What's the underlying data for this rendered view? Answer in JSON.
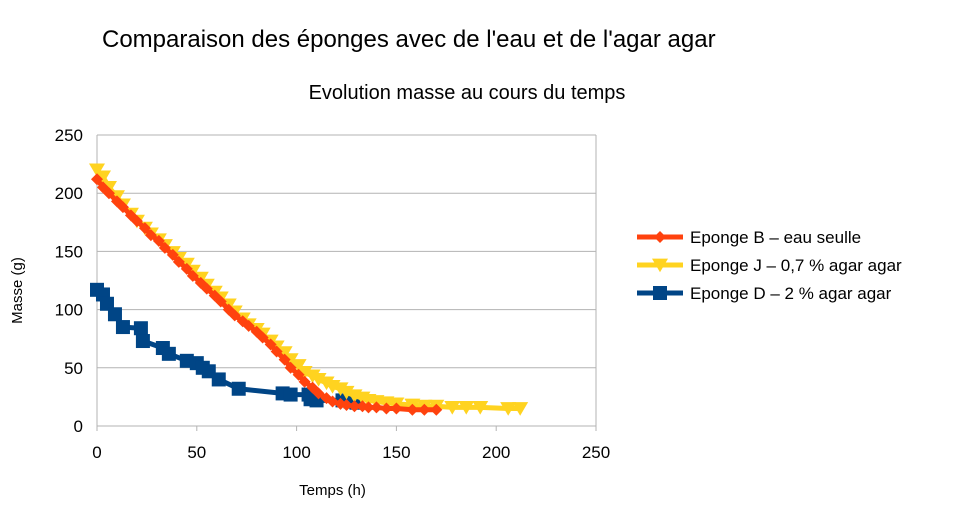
{
  "chart_data": {
    "type": "scatter",
    "title": "Comparaison des éponges avec de l'eau et de l'agar agar",
    "subtitle": "Evolution masse au cours du temps",
    "xlabel": "Temps (h)",
    "ylabel": "Masse (g)",
    "xlim": [
      0,
      250
    ],
    "ylim": [
      0,
      250
    ],
    "xticks": [
      0,
      50,
      100,
      150,
      200,
      250
    ],
    "yticks": [
      0,
      50,
      100,
      150,
      200,
      250
    ],
    "grid": "horizontal",
    "legend_position": "right",
    "series": [
      {
        "name": "Eponge B – eau seulle",
        "color": "#ff420e",
        "marker": "diamond",
        "x": [
          0,
          3,
          6,
          10,
          13,
          17,
          20,
          24,
          27,
          31,
          34,
          38,
          41,
          45,
          48,
          52,
          55,
          59,
          62,
          66,
          69,
          73,
          76,
          80,
          83,
          87,
          90,
          94,
          97,
          101,
          104,
          108,
          111,
          115,
          118,
          122,
          125,
          129,
          133,
          136,
          140,
          145,
          150,
          158,
          164,
          170
        ],
        "y": [
          212,
          205,
          200,
          193,
          188,
          181,
          176,
          170,
          164,
          159,
          153,
          147,
          141,
          135,
          129,
          123,
          118,
          112,
          107,
          100,
          95,
          90,
          86,
          81,
          76,
          70,
          64,
          57,
          50,
          44,
          38,
          33,
          28,
          24,
          21,
          19,
          18,
          17,
          17,
          16,
          16,
          15,
          15,
          14,
          14,
          14
        ]
      },
      {
        "name": "Eponge J – 0,7 % agar agar",
        "color": "#ffd320",
        "marker": "triangle-down",
        "x": [
          0,
          3,
          6,
          10,
          13,
          17,
          20,
          24,
          27,
          31,
          34,
          38,
          41,
          45,
          48,
          52,
          55,
          59,
          62,
          66,
          69,
          73,
          76,
          80,
          83,
          87,
          90,
          94,
          97,
          101,
          104,
          108,
          111,
          115,
          118,
          122,
          125,
          129,
          133,
          136,
          140,
          145,
          150,
          158,
          164,
          170,
          178,
          185,
          192,
          206,
          212
        ],
        "y": [
          220,
          214,
          205,
          197,
          190,
          182,
          176,
          170,
          165,
          160,
          155,
          149,
          144,
          139,
          133,
          127,
          121,
          115,
          110,
          104,
          98,
          92,
          87,
          83,
          79,
          73,
          68,
          63,
          57,
          52,
          46,
          43,
          40,
          37,
          34,
          32,
          29,
          26,
          24,
          22,
          21,
          20,
          19,
          18,
          17,
          17,
          16,
          16,
          16,
          15,
          15
        ]
      },
      {
        "name": "Eponge D – 2 % agar agar",
        "color": "#004586",
        "marker": "square",
        "x": [
          0,
          3,
          5,
          9,
          13,
          22,
          23,
          33,
          36,
          45,
          50,
          53,
          56,
          61,
          71,
          93,
          97,
          106,
          107,
          110,
          123,
          127,
          130
        ],
        "y": [
          117,
          113,
          105,
          96,
          85,
          84,
          73,
          67,
          62,
          56,
          54,
          50,
          47,
          40,
          32,
          28,
          27,
          27,
          23,
          22,
          22,
          21,
          20
        ]
      }
    ]
  }
}
